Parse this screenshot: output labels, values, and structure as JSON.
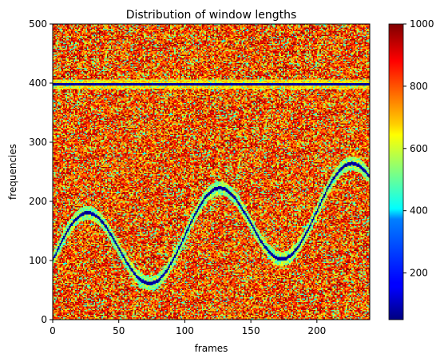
{
  "chart_data": {
    "type": "heatmap",
    "title": "Distribution of window lengths",
    "xlabel": "frames",
    "ylabel": "frequencies",
    "xlim": [
      0,
      240
    ],
    "ylim": [
      0,
      500
    ],
    "x_ticks": [
      0,
      50,
      100,
      150,
      200
    ],
    "y_ticks": [
      0,
      100,
      200,
      300,
      400,
      500
    ],
    "colormap": "jet",
    "colorbar": {
      "range": [
        50,
        1000
      ],
      "ticks": [
        200,
        400,
        600,
        800,
        1000
      ]
    },
    "background": {
      "description_values": "mostly high values (700-1000) with scattered lower cells (400-700)",
      "typical_value_range": [
        700,
        1000
      ],
      "noise_value_range": [
        400,
        700
      ]
    },
    "features": [
      {
        "name": "constant-line",
        "kind": "horizontal",
        "frequency": 398,
        "core_value": 50,
        "halo_value": 600
      },
      {
        "name": "sinusoid-line",
        "kind": "sinusoid",
        "offset": 100,
        "amplitude": 70,
        "period": 100,
        "phase_frame": 0,
        "drift_per_frame": 0.4167,
        "core_value": 50,
        "halo_value": 450
      }
    ],
    "sampled_curve": {
      "frames": [
        0,
        20,
        70,
        120,
        170,
        220,
        240
      ],
      "frequencies": [
        100,
        168,
        30,
        208,
        70,
        248,
        200
      ]
    }
  }
}
